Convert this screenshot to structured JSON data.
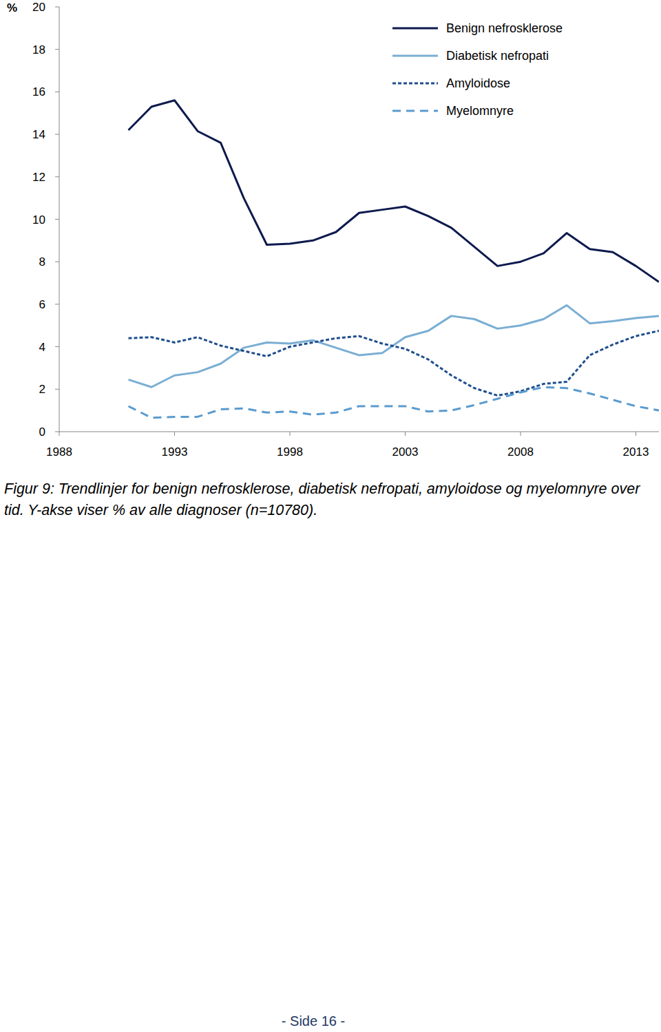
{
  "chart_data": {
    "type": "line",
    "y_label": "%",
    "x": [
      1991,
      1992,
      1993,
      1994,
      1995,
      1996,
      1997,
      1998,
      1999,
      2000,
      2001,
      2002,
      2003,
      2004,
      2005,
      2006,
      2007,
      2008,
      2009,
      2010,
      2011,
      2012,
      2013,
      2014
    ],
    "xlim": [
      1988,
      2014
    ],
    "xticks": [
      1988,
      1993,
      1998,
      2003,
      2008,
      2013
    ],
    "ylim": [
      0,
      20
    ],
    "yticks": [
      0,
      2,
      4,
      6,
      8,
      10,
      12,
      14,
      16,
      18,
      20
    ],
    "grid": false,
    "legend": "top-right",
    "series": [
      {
        "name": "Benign nefrosklerose",
        "color": "#0d1a4d",
        "line_style": "solid",
        "values": [
          14.2,
          15.3,
          15.6,
          14.15,
          13.6,
          11.0,
          8.8,
          8.85,
          9.0,
          9.4,
          10.3,
          10.45,
          10.6,
          10.15,
          9.6,
          8.7,
          7.8,
          8.0,
          8.4,
          9.35,
          8.6,
          8.45,
          7.8,
          7.05
        ]
      },
      {
        "name": "Diabetisk nefropati",
        "color": "#7aaed3",
        "line_style": "solid",
        "values": [
          2.45,
          2.1,
          2.65,
          2.8,
          3.2,
          3.95,
          4.2,
          4.15,
          4.3,
          3.95,
          3.6,
          3.7,
          4.45,
          4.75,
          5.45,
          5.3,
          4.85,
          5.0,
          5.3,
          5.95,
          5.1,
          5.2,
          5.35,
          5.45
        ]
      },
      {
        "name": "Amyloidose",
        "color": "#1f4e8c",
        "line_style": "dotted",
        "values": [
          4.4,
          4.45,
          4.2,
          4.45,
          4.05,
          3.8,
          3.55,
          4.0,
          4.2,
          4.4,
          4.5,
          4.15,
          3.9,
          3.4,
          2.65,
          2.05,
          1.7,
          1.9,
          2.25,
          2.35,
          3.6,
          4.1,
          4.5,
          4.75
        ]
      },
      {
        "name": "Myelomnyre",
        "color": "#5a9bcf",
        "line_style": "dashed",
        "values": [
          1.2,
          0.65,
          0.7,
          0.7,
          1.05,
          1.1,
          0.9,
          0.95,
          0.8,
          0.9,
          1.2,
          1.2,
          1.2,
          0.95,
          1.0,
          1.25,
          1.55,
          1.85,
          2.1,
          2.05,
          1.8,
          1.5,
          1.2,
          1.0
        ]
      }
    ]
  },
  "caption": "Figur 9: Trendlinjer for benign nefrosklerose, diabetisk nefropati, amyloidose og myelomnyre over tid. Y-akse viser % av alle diagnoser (n=10780).",
  "footer": "- Side 16 -"
}
